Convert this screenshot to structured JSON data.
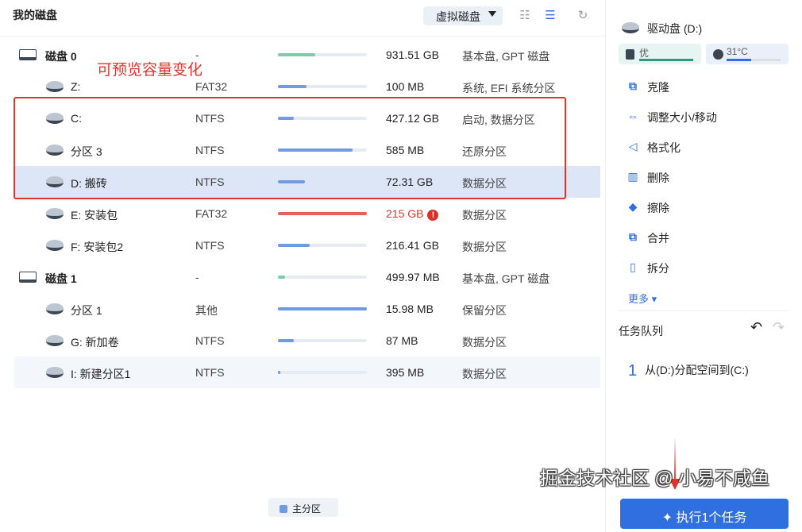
{
  "header": {
    "title": "我的磁盘",
    "view_select": "虚拟磁盘"
  },
  "annotation": "可预览容量变化",
  "rows": [
    {
      "name": "磁盘 0",
      "fs": "-",
      "fill": 0.42,
      "size": "931.51 GB",
      "type": "基本盘, GPT 磁盘",
      "kind": "disk"
    },
    {
      "name": "Z:",
      "fs": "FAT32",
      "fill": 0.32,
      "size": "100 MB",
      "type": "系统, EFI 系统分区"
    },
    {
      "name": "C:",
      "fs": "NTFS",
      "fill": 0.18,
      "size": "427.12 GB",
      "type": "启动, 数据分区"
    },
    {
      "name": "分区 3",
      "fs": "NTFS",
      "fill": 0.84,
      "size": "585 MB",
      "type": "还原分区"
    },
    {
      "name": "D: 搬砖",
      "fs": "NTFS",
      "fill": 0.3,
      "size": "72.31 GB",
      "type": "数据分区",
      "selected": true
    },
    {
      "name": "E: 安装包",
      "fs": "FAT32",
      "fill": 1.0,
      "size": "215 GB",
      "type": "数据分区",
      "warning": true
    },
    {
      "name": "F: 安装包2",
      "fs": "NTFS",
      "fill": 0.36,
      "size": "216.41 GB",
      "type": "数据分区"
    },
    {
      "name": "磁盘 1",
      "fs": "-",
      "fill": 0.08,
      "size": "499.97 MB",
      "type": "基本盘, GPT 磁盘",
      "kind": "disk"
    },
    {
      "name": "分区 1",
      "fs": "其他",
      "fill": 1.0,
      "size": "15.98 MB",
      "type": "保留分区"
    },
    {
      "name": "G: 新加卷",
      "fs": "NTFS",
      "fill": 0.18,
      "size": "87 MB",
      "type": "数据分区"
    },
    {
      "name": "I: 新建分区1",
      "fs": "NTFS",
      "fill": 0.03,
      "size": "395 MB",
      "type": "数据分区",
      "highlight": true
    }
  ],
  "legend": "主分区",
  "side": {
    "drive": "驱动盘  (D:)",
    "health": "优",
    "health_level": 1.0,
    "temp": "31°C",
    "temp_level": 0.45,
    "actions": [
      "克隆",
      "调整大小/移动",
      "格式化",
      "删除",
      "擦除",
      "合并",
      "拆分"
    ],
    "more": "更多",
    "queue_title": "任务队列",
    "task_num": "1",
    "task": "从(D:)分配空间到(C:)",
    "run": "执行1个任务"
  },
  "watermark": "掘金技术社区 @ 小易不咸鱼",
  "colors": {
    "accent": "#2f6fe0",
    "bar": "#6f9be3",
    "disk_bar": "#7ccaa6",
    "warn": "#e5605a",
    "annotation": "#e5322b"
  }
}
